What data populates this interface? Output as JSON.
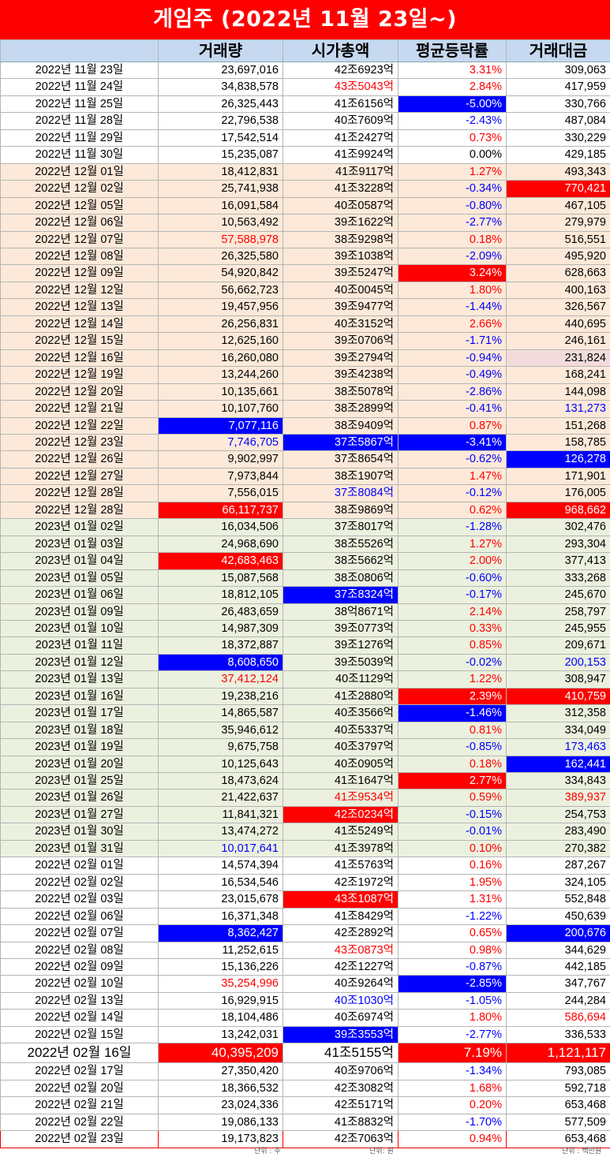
{
  "title": "게임주 (2022년 11월 23일~)",
  "headers": [
    "",
    "거래량",
    "시가총액",
    "평균등락률",
    "거래대금"
  ],
  "colors": {
    "red": "#ff0000",
    "blue": "#0000ff",
    "peach": "#fde9d9",
    "green": "#ebf1de",
    "header": "#c6d9f1"
  },
  "rows": [
    {
      "date": "2022년 11월 23일",
      "volume": "23,697,016",
      "cap": "42조6923억",
      "rate": "3.31%",
      "amount": "309,063",
      "group": "white",
      "styles": [
        "",
        "",
        "",
        "t-red",
        ""
      ]
    },
    {
      "date": "2022년 11월 24일",
      "volume": "34,838,578",
      "cap": "43조5043억",
      "rate": "2.84%",
      "amount": "417,959",
      "group": "white",
      "styles": [
        "",
        "",
        "t-red",
        "t-red",
        ""
      ]
    },
    {
      "date": "2022년 11월 25일",
      "volume": "26,325,443",
      "cap": "41조6156억",
      "rate": "-5.00%",
      "amount": "330,766",
      "group": "white",
      "styles": [
        "",
        "",
        "",
        "fill-blue",
        ""
      ]
    },
    {
      "date": "2022년 11월 28일",
      "volume": "22,796,538",
      "cap": "40조7609억",
      "rate": "-2.43%",
      "amount": "487,084",
      "group": "white",
      "styles": [
        "",
        "",
        "",
        "t-blue",
        ""
      ]
    },
    {
      "date": "2022년 11월 29일",
      "volume": "17,542,514",
      "cap": "41조2427억",
      "rate": "0.73%",
      "amount": "330,229",
      "group": "white",
      "styles": [
        "",
        "",
        "",
        "t-red",
        ""
      ]
    },
    {
      "date": "2022년 11월 30일",
      "volume": "15,235,087",
      "cap": "41조9924억",
      "rate": "0.00%",
      "amount": "429,185",
      "group": "white",
      "styles": [
        "",
        "",
        "",
        "t-black",
        ""
      ]
    },
    {
      "date": "2022년 12월 01일",
      "volume": "18,412,831",
      "cap": "41조9117억",
      "rate": "1.27%",
      "amount": "493,343",
      "group": "peach",
      "styles": [
        "",
        "",
        "",
        "t-red",
        ""
      ]
    },
    {
      "date": "2022년 12월 02일",
      "volume": "25,741,938",
      "cap": "41조3228억",
      "rate": "-0.34%",
      "amount": "770,421",
      "group": "peach",
      "styles": [
        "",
        "",
        "",
        "t-blue",
        "fill-red"
      ]
    },
    {
      "date": "2022년 12월 05일",
      "volume": "16,091,584",
      "cap": "40조0587억",
      "rate": "-0.80%",
      "amount": "467,105",
      "group": "peach",
      "styles": [
        "",
        "",
        "",
        "t-blue",
        ""
      ]
    },
    {
      "date": "2022년 12월 06일",
      "volume": "10,563,492",
      "cap": "39조1622억",
      "rate": "-2.77%",
      "amount": "279,979",
      "group": "peach",
      "styles": [
        "",
        "",
        "",
        "t-blue",
        ""
      ]
    },
    {
      "date": "2022년 12월 07일",
      "volume": "57,588,978",
      "cap": "38조9298억",
      "rate": "0.18%",
      "amount": "516,551",
      "group": "peach",
      "styles": [
        "",
        "t-red",
        "",
        "t-red",
        ""
      ]
    },
    {
      "date": "2022년 12월 08일",
      "volume": "26,325,580",
      "cap": "39조1038억",
      "rate": "-2.09%",
      "amount": "495,920",
      "group": "peach",
      "styles": [
        "",
        "",
        "",
        "t-blue",
        ""
      ]
    },
    {
      "date": "2022년 12월 09일",
      "volume": "54,920,842",
      "cap": "39조5247억",
      "rate": "3.24%",
      "amount": "628,663",
      "group": "peach",
      "styles": [
        "",
        "",
        "",
        "fill-red",
        ""
      ]
    },
    {
      "date": "2022년 12월 12일",
      "volume": "56,662,723",
      "cap": "40조0045억",
      "rate": "1.80%",
      "amount": "400,163",
      "group": "peach",
      "styles": [
        "",
        "",
        "",
        "t-red",
        ""
      ]
    },
    {
      "date": "2022년 12월 13일",
      "volume": "19,457,956",
      "cap": "39조9477억",
      "rate": "-1.44%",
      "amount": "326,567",
      "group": "peach",
      "styles": [
        "",
        "",
        "",
        "t-blue",
        ""
      ]
    },
    {
      "date": "2022년 12월 14일",
      "volume": "26,256,831",
      "cap": "40조3152억",
      "rate": "2.66%",
      "amount": "440,695",
      "group": "peach",
      "styles": [
        "",
        "",
        "",
        "t-red",
        ""
      ]
    },
    {
      "date": "2022년 12월 15일",
      "volume": "12,625,160",
      "cap": "39조0706억",
      "rate": "-1.71%",
      "amount": "246,161",
      "group": "peach",
      "styles": [
        "",
        "",
        "",
        "t-blue",
        ""
      ]
    },
    {
      "date": "2022년 12월 16일",
      "volume": "16,260,080",
      "cap": "39조2794억",
      "rate": "-0.94%",
      "amount": "231,824",
      "group": "peach",
      "styles": [
        "",
        "",
        "",
        "t-blue",
        "fill-pink"
      ]
    },
    {
      "date": "2022년 12월 19일",
      "volume": "13,244,260",
      "cap": "39조4238억",
      "rate": "-0.49%",
      "amount": "168,241",
      "group": "peach",
      "styles": [
        "",
        "",
        "",
        "t-blue",
        ""
      ]
    },
    {
      "date": "2022년 12월 20일",
      "volume": "10,135,661",
      "cap": "38조5078억",
      "rate": "-2.86%",
      "amount": "144,098",
      "group": "peach",
      "styles": [
        "",
        "",
        "",
        "t-blue",
        ""
      ]
    },
    {
      "date": "2022년 12월 21일",
      "volume": "10,107,760",
      "cap": "38조2899억",
      "rate": "-0.41%",
      "amount": "131,273",
      "group": "peach",
      "styles": [
        "",
        "",
        "",
        "t-blue",
        "t-blue"
      ]
    },
    {
      "date": "2022년 12월 22일",
      "volume": "7,077,116",
      "cap": "38조9409억",
      "rate": "0.87%",
      "amount": "151,268",
      "group": "peach",
      "styles": [
        "",
        "fill-blue",
        "",
        "t-red",
        ""
      ]
    },
    {
      "date": "2022년 12월 23일",
      "volume": "7,746,705",
      "cap": "37조5867억",
      "rate": "-3.41%",
      "amount": "158,785",
      "group": "peach",
      "styles": [
        "",
        "t-blue",
        "fill-blue",
        "fill-blue",
        ""
      ]
    },
    {
      "date": "2022년 12월 26일",
      "volume": "9,902,997",
      "cap": "37조8654억",
      "rate": "-0.62%",
      "amount": "126,278",
      "group": "peach",
      "styles": [
        "",
        "",
        "",
        "t-blue",
        "fill-blue"
      ]
    },
    {
      "date": "2022년 12월 27일",
      "volume": "7,973,844",
      "cap": "38조1907억",
      "rate": "1.47%",
      "amount": "171,901",
      "group": "peach",
      "styles": [
        "",
        "",
        "",
        "t-red",
        ""
      ]
    },
    {
      "date": "2022년 12월 28일",
      "volume": "7,556,015",
      "cap": "37조8084억",
      "rate": "-0.12%",
      "amount": "176,005",
      "group": "peach",
      "styles": [
        "",
        "",
        "t-blue",
        "t-blue",
        ""
      ]
    },
    {
      "date": "2022년 12월 28일",
      "volume": "66,117,737",
      "cap": "38조9869억",
      "rate": "0.62%",
      "amount": "968,662",
      "group": "peach",
      "styles": [
        "",
        "fill-red",
        "",
        "t-red",
        "fill-red"
      ]
    },
    {
      "date": "2023년 01월 02일",
      "volume": "16,034,506",
      "cap": "37조8017억",
      "rate": "-1.28%",
      "amount": "302,476",
      "group": "green",
      "styles": [
        "",
        "",
        "",
        "t-blue",
        ""
      ]
    },
    {
      "date": "2023년 01월 03일",
      "volume": "24,968,690",
      "cap": "38조5526억",
      "rate": "1.27%",
      "amount": "293,304",
      "group": "green",
      "styles": [
        "",
        "",
        "",
        "t-red",
        ""
      ]
    },
    {
      "date": "2023년 01월 04일",
      "volume": "42,683,463",
      "cap": "38조5662억",
      "rate": "2.00%",
      "amount": "377,413",
      "group": "green",
      "styles": [
        "",
        "fill-red",
        "",
        "t-red",
        ""
      ]
    },
    {
      "date": "2023년 01월 05일",
      "volume": "15,087,568",
      "cap": "38조0806억",
      "rate": "-0.60%",
      "amount": "333,268",
      "group": "green",
      "styles": [
        "",
        "",
        "",
        "t-blue",
        ""
      ]
    },
    {
      "date": "2023년 01월 06일",
      "volume": "18,812,105",
      "cap": "37조8324억",
      "rate": "-0.17%",
      "amount": "245,670",
      "group": "green",
      "styles": [
        "",
        "",
        "fill-blue",
        "t-blue",
        ""
      ]
    },
    {
      "date": "2023년 01월 09일",
      "volume": "26,483,659",
      "cap": "38억8671억",
      "rate": "2.14%",
      "amount": "258,797",
      "group": "green",
      "styles": [
        "",
        "",
        "",
        "t-red",
        ""
      ]
    },
    {
      "date": "2023년 01월 10일",
      "volume": "14,987,309",
      "cap": "39조0773억",
      "rate": "0.33%",
      "amount": "245,955",
      "group": "green",
      "styles": [
        "",
        "",
        "",
        "t-red",
        ""
      ]
    },
    {
      "date": "2023년 01월 11일",
      "volume": "18,372,887",
      "cap": "39조1276억",
      "rate": "0.85%",
      "amount": "209,671",
      "group": "green",
      "styles": [
        "",
        "",
        "",
        "t-red",
        ""
      ]
    },
    {
      "date": "2023년 01월 12일",
      "volume": "8,608,650",
      "cap": "39조5039억",
      "rate": "-0.02%",
      "amount": "200,153",
      "group": "green",
      "styles": [
        "",
        "fill-blue",
        "",
        "t-blue",
        "t-blue"
      ]
    },
    {
      "date": "2023년 01월 13일",
      "volume": "37,412,124",
      "cap": "40조1129억",
      "rate": "1.22%",
      "amount": "308,947",
      "group": "green",
      "styles": [
        "",
        "t-red",
        "",
        "t-red",
        ""
      ]
    },
    {
      "date": "2023년 01월 16일",
      "volume": "19,238,216",
      "cap": "41조2880억",
      "rate": "2.39%",
      "amount": "410,759",
      "group": "green",
      "styles": [
        "",
        "",
        "",
        "fill-red",
        "fill-red"
      ]
    },
    {
      "date": "2023년 01월 17일",
      "volume": "14,865,587",
      "cap": "40조3566억",
      "rate": "-1.46%",
      "amount": "312,358",
      "group": "green",
      "styles": [
        "",
        "",
        "",
        "fill-blue",
        ""
      ]
    },
    {
      "date": "2023년 01월 18일",
      "volume": "35,946,612",
      "cap": "40조5337억",
      "rate": "0.81%",
      "amount": "334,049",
      "group": "green",
      "styles": [
        "",
        "",
        "",
        "t-red",
        ""
      ]
    },
    {
      "date": "2023년 01월 19일",
      "volume": "9,675,758",
      "cap": "40조3797억",
      "rate": "-0.85%",
      "amount": "173,463",
      "group": "green",
      "styles": [
        "",
        "",
        "",
        "t-blue",
        "t-blue"
      ]
    },
    {
      "date": "2023년 01월 20일",
      "volume": "10,125,643",
      "cap": "40조0905억",
      "rate": "0.18%",
      "amount": "162,441",
      "group": "green",
      "styles": [
        "",
        "",
        "",
        "t-red",
        "fill-blue"
      ]
    },
    {
      "date": "2023년 01월 25일",
      "volume": "18,473,624",
      "cap": "41조1647억",
      "rate": "2.77%",
      "amount": "334,843",
      "group": "green",
      "styles": [
        "",
        "",
        "",
        "fill-red",
        ""
      ]
    },
    {
      "date": "2023년 01월 26일",
      "volume": "21,422,637",
      "cap": "41조9534억",
      "rate": "0.59%",
      "amount": "389,937",
      "group": "green",
      "styles": [
        "",
        "",
        "t-red",
        "t-red",
        "t-red"
      ]
    },
    {
      "date": "2023년 01월 27일",
      "volume": "11,841,321",
      "cap": "42조0234억",
      "rate": "-0.15%",
      "amount": "254,753",
      "group": "green",
      "styles": [
        "",
        "",
        "fill-red",
        "t-blue",
        ""
      ]
    },
    {
      "date": "2023년 01월 30일",
      "volume": "13,474,272",
      "cap": "41조5249억",
      "rate": "-0.01%",
      "amount": "283,490",
      "group": "green",
      "styles": [
        "",
        "",
        "",
        "t-blue",
        ""
      ]
    },
    {
      "date": "2023년 01월 31일",
      "volume": "10,017,641",
      "cap": "41조3978억",
      "rate": "0.10%",
      "amount": "270,382",
      "group": "green",
      "styles": [
        "",
        "t-blue",
        "",
        "t-red",
        ""
      ]
    },
    {
      "date": "2022년 02월 01일",
      "volume": "14,574,394",
      "cap": "41조5763억",
      "rate": "0.16%",
      "amount": "287,267",
      "group": "white",
      "styles": [
        "",
        "",
        "",
        "t-red",
        ""
      ]
    },
    {
      "date": "2022년 02월 02일",
      "volume": "16,534,546",
      "cap": "42조1972억",
      "rate": "1.95%",
      "amount": "324,105",
      "group": "white",
      "styles": [
        "",
        "",
        "",
        "t-red",
        ""
      ]
    },
    {
      "date": "2022년 02월 03일",
      "volume": "23,015,678",
      "cap": "43조1087억",
      "rate": "1.31%",
      "amount": "552,848",
      "group": "white",
      "styles": [
        "",
        "",
        "fill-red",
        "t-red",
        ""
      ]
    },
    {
      "date": "2022년 02월 06일",
      "volume": "16,371,348",
      "cap": "41조8429억",
      "rate": "-1.22%",
      "amount": "450,639",
      "group": "white",
      "styles": [
        "",
        "",
        "",
        "t-blue",
        ""
      ]
    },
    {
      "date": "2022년 02월 07일",
      "volume": "8,362,427",
      "cap": "42조2892억",
      "rate": "0.65%",
      "amount": "200,676",
      "group": "white",
      "styles": [
        "",
        "fill-blue",
        "",
        "t-red",
        "fill-blue"
      ]
    },
    {
      "date": "2022년 02월 08일",
      "volume": "11,252,615",
      "cap": "43조0873억",
      "rate": "0.98%",
      "amount": "344,629",
      "group": "white",
      "styles": [
        "",
        "",
        "t-red",
        "t-red",
        ""
      ]
    },
    {
      "date": "2022년 02월 09일",
      "volume": "15,136,226",
      "cap": "42조1227억",
      "rate": "-0.87%",
      "amount": "442,185",
      "group": "white",
      "styles": [
        "",
        "",
        "",
        "t-blue",
        ""
      ]
    },
    {
      "date": "2022년 02월 10일",
      "volume": "35,254,996",
      "cap": "40조9264억",
      "rate": "-2.85%",
      "amount": "347,767",
      "group": "white",
      "styles": [
        "",
        "t-red",
        "",
        "fill-blue",
        ""
      ]
    },
    {
      "date": "2022년 02월 13일",
      "volume": "16,929,915",
      "cap": "40조1030억",
      "rate": "-1.05%",
      "amount": "244,284",
      "group": "white",
      "styles": [
        "",
        "",
        "t-blue",
        "t-blue",
        ""
      ]
    },
    {
      "date": "2022년 02월 14일",
      "volume": "18,104,486",
      "cap": "40조6974억",
      "rate": "1.80%",
      "amount": "586,694",
      "group": "white",
      "styles": [
        "",
        "",
        "",
        "t-red",
        "t-red"
      ]
    },
    {
      "date": "2022년 02월 15일",
      "volume": "13,242,031",
      "cap": "39조3553억",
      "rate": "-2.77%",
      "amount": "336,533",
      "group": "white",
      "styles": [
        "",
        "",
        "fill-blue",
        "t-blue",
        ""
      ]
    },
    {
      "date": "2022년 02월 16일",
      "volume": "40,395,209",
      "cap": "41조5155억",
      "rate": "7.19%",
      "amount": "1,121,117",
      "group": "white",
      "big": true,
      "styles": [
        "",
        "fill-red",
        "",
        "fill-red",
        "fill-red"
      ]
    },
    {
      "date": "2022년 02월 17일",
      "volume": "27,350,420",
      "cap": "40조9706억",
      "rate": "-1.34%",
      "amount": "793,085",
      "group": "white",
      "styles": [
        "",
        "",
        "",
        "t-blue",
        ""
      ]
    },
    {
      "date": "2022년 02월 20일",
      "volume": "18,366,532",
      "cap": "42조3082억",
      "rate": "1.68%",
      "amount": "592,718",
      "group": "white",
      "styles": [
        "",
        "",
        "",
        "t-red",
        ""
      ]
    },
    {
      "date": "2022년 02월 21일",
      "volume": "23,024,336",
      "cap": "42조5171억",
      "rate": "0.20%",
      "amount": "653,468",
      "group": "white",
      "styles": [
        "",
        "",
        "",
        "t-red",
        ""
      ]
    },
    {
      "date": "2022년 02월 22일",
      "volume": "19,086,133",
      "cap": "41조8832억",
      "rate": "-1.70%",
      "amount": "577,509",
      "group": "white",
      "styles": [
        "",
        "",
        "",
        "t-blue",
        ""
      ]
    },
    {
      "date": "2022년 02월 23일",
      "volume": "19,173,823",
      "cap": "42조7063억",
      "rate": "0.94%",
      "amount": "653,468",
      "group": "white",
      "last": true,
      "styles": [
        "",
        "",
        "",
        "t-red",
        ""
      ]
    }
  ],
  "footer": {
    "unit_volume": "단위 : 주",
    "unit_cap": "단위: 원",
    "unit_amount": "단위 : 백만원"
  }
}
